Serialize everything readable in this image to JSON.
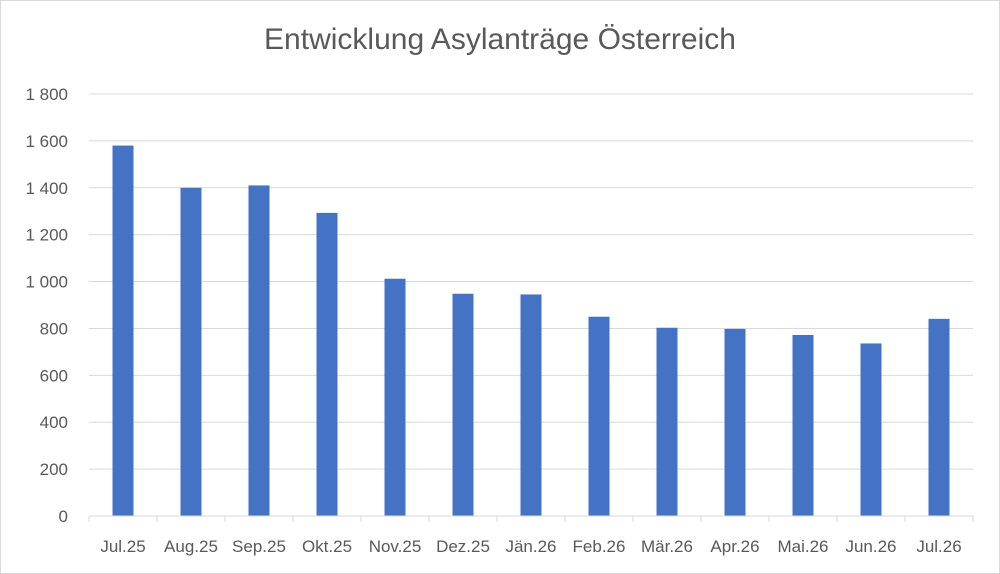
{
  "chart_data": {
    "type": "bar",
    "title": "Entwicklung Asylanträge Österreich",
    "xlabel": "",
    "ylabel": "",
    "categories": [
      "Jul.25",
      "Aug.25",
      "Sep.25",
      "Okt.25",
      "Nov.25",
      "Dez.25",
      "Jän.26",
      "Feb.26",
      "Mär.26",
      "Apr.26",
      "Mai.26",
      "Jun.26",
      "Jul.26"
    ],
    "values": [
      1580,
      1400,
      1410,
      1293,
      1012,
      948,
      945,
      850,
      803,
      798,
      772,
      736,
      841
    ],
    "ylim": [
      0,
      1800
    ],
    "yticks": [
      0,
      200,
      400,
      600,
      800,
      1000,
      1200,
      1400,
      1600,
      1800
    ],
    "ytick_labels": [
      "0",
      "200",
      "400",
      "600",
      "800",
      "1 000",
      "1 200",
      "1 400",
      "1 600",
      "1 800"
    ],
    "grid": true,
    "bar_color": "#4472c4",
    "grid_color": "#d9d9d9",
    "text_color": "#595959"
  }
}
